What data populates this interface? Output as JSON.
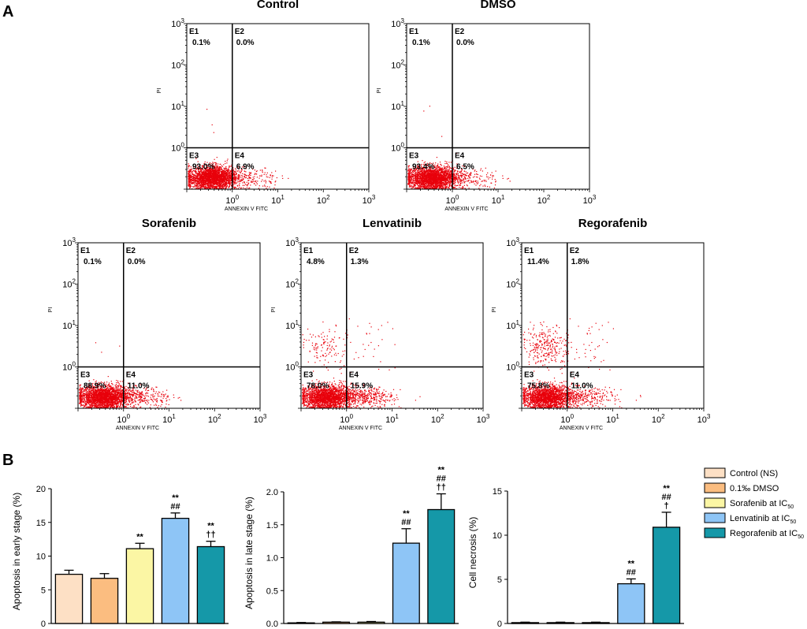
{
  "figure": {
    "panel_a_label": "A",
    "panel_b_label": "B"
  },
  "flow_common": {
    "x_axis_label": "ANNEXIN V FITC",
    "y_axis_label": "PI",
    "x_ticks": [
      "10",
      "10",
      "10",
      "10"
    ],
    "x_tick_exps": [
      "0",
      "1",
      "2",
      "3"
    ],
    "y_ticks": [
      "10",
      "10",
      "10",
      "10"
    ],
    "y_tick_exps": [
      "0",
      "1",
      "2",
      "3"
    ],
    "quadrant_names": [
      "E1",
      "E2",
      "E3",
      "E4"
    ],
    "dot_color": "#e8000b"
  },
  "chart_data": [
    {
      "type": "scatter",
      "title": "Control",
      "xlabel": "ANNEXIN V FITC",
      "ylabel": "PI",
      "xlim_log10": [
        -1,
        3
      ],
      "ylim_log10": [
        -1,
        3
      ],
      "gates_log10": {
        "x": 0,
        "y": 0
      },
      "quadrants": {
        "E1": "0.1%",
        "E2": "0.0%",
        "E3": "93.0%",
        "E4": "6.9%"
      }
    },
    {
      "type": "scatter",
      "title": "DMSO",
      "xlabel": "ANNEXIN V FITC",
      "ylabel": "PI",
      "xlim_log10": [
        -1,
        3
      ],
      "ylim_log10": [
        -1,
        3
      ],
      "gates_log10": {
        "x": 0,
        "y": 0
      },
      "quadrants": {
        "E1": "0.1%",
        "E2": "0.0%",
        "E3": "93.4%",
        "E4": "6.5%"
      }
    },
    {
      "type": "scatter",
      "title": "Sorafenib",
      "xlabel": "ANNEXIN V FITC",
      "ylabel": "PI",
      "xlim_log10": [
        -1,
        3
      ],
      "ylim_log10": [
        -1,
        3
      ],
      "gates_log10": {
        "x": 0,
        "y": 0
      },
      "quadrants": {
        "E1": "0.1%",
        "E2": "0.0%",
        "E3": "88.9%",
        "E4": "11.0%"
      }
    },
    {
      "type": "scatter",
      "title": "Lenvatinib",
      "xlabel": "ANNEXIN V FITC",
      "ylabel": "PI",
      "xlim_log10": [
        -1,
        3
      ],
      "ylim_log10": [
        -1,
        3
      ],
      "gates_log10": {
        "x": 0,
        "y": 0
      },
      "quadrants": {
        "E1": "4.8%",
        "E2": "1.3%",
        "E3": "78.0%",
        "E4": "15.9%"
      }
    },
    {
      "type": "scatter",
      "title": "Regorafenib",
      "xlabel": "ANNEXIN V FITC",
      "ylabel": "PI",
      "xlim_log10": [
        -1,
        3
      ],
      "ylim_log10": [
        -1,
        3
      ],
      "gates_log10": {
        "x": 0,
        "y": 0
      },
      "quadrants": {
        "E1": "11.4%",
        "E2": "1.8%",
        "E3": "75.8%",
        "E4": "11.0%"
      }
    },
    {
      "type": "bar",
      "title": "",
      "xlabel": "",
      "ylabel": "Apoptosis in early stage (%)",
      "ylim": [
        0,
        20
      ],
      "yticks": [
        "0",
        "5",
        "10",
        "15",
        "20"
      ],
      "categories": [
        "Control (NS)",
        "0.1‰ DMSO",
        "Sorafenib at IC50",
        "Lenvatinib at IC50",
        "Regorafenib at IC50"
      ],
      "values": [
        7.3,
        6.7,
        11.1,
        15.6,
        11.4
      ],
      "errors": [
        0.6,
        0.7,
        0.8,
        0.8,
        0.8
      ],
      "annotations": [
        [],
        [],
        [
          "**"
        ],
        [
          "##",
          "**"
        ],
        [
          "††",
          "**"
        ]
      ]
    },
    {
      "type": "bar",
      "title": "",
      "xlabel": "",
      "ylabel": "Apoptosis in late stage (%)",
      "ylim": [
        0,
        2.0
      ],
      "yticks": [
        "0.0",
        "0.5",
        "1.0",
        "1.5",
        "2.0"
      ],
      "categories": [
        "Control (NS)",
        "0.1‰ DMSO",
        "Sorafenib at IC50",
        "Lenvatinib at IC50",
        "Regorafenib at IC50"
      ],
      "values": [
        0.01,
        0.02,
        0.02,
        1.22,
        1.73
      ],
      "errors": [
        0.005,
        0.005,
        0.01,
        0.22,
        0.24
      ],
      "annotations": [
        [],
        [],
        [],
        [
          "##",
          "**"
        ],
        [
          "††",
          "##",
          "**"
        ]
      ]
    },
    {
      "type": "bar",
      "title": "",
      "xlabel": "",
      "ylabel": "Cell necrosis (%)",
      "ylim": [
        0,
        15
      ],
      "yticks": [
        "0",
        "5",
        "10",
        "15"
      ],
      "categories": [
        "Control (NS)",
        "0.1‰ DMSO",
        "Sorafenib at IC50",
        "Lenvatinib at IC50",
        "Regorafenib at IC50"
      ],
      "values": [
        0.1,
        0.1,
        0.1,
        4.5,
        10.9
      ],
      "errors": [
        0.05,
        0.05,
        0.05,
        0.55,
        1.7
      ],
      "annotations": [
        [],
        [],
        [],
        [
          "##",
          "**"
        ],
        [
          "†",
          "##",
          "**"
        ]
      ]
    }
  ],
  "legend": {
    "items": [
      {
        "label": "Control (NS)",
        "sub": "",
        "color": "#fde0c5"
      },
      {
        "label": "0.1‰ DMSO",
        "sub": "",
        "color": "#fbbd80"
      },
      {
        "label": "Sorafenib at IC",
        "sub": "50",
        "color": "#fbf6a4"
      },
      {
        "label": "Lenvatinib at IC",
        "sub": "50",
        "color": "#8ec5f6"
      },
      {
        "label": "Regorafenib at IC",
        "sub": "50",
        "color": "#1598a8"
      }
    ]
  }
}
